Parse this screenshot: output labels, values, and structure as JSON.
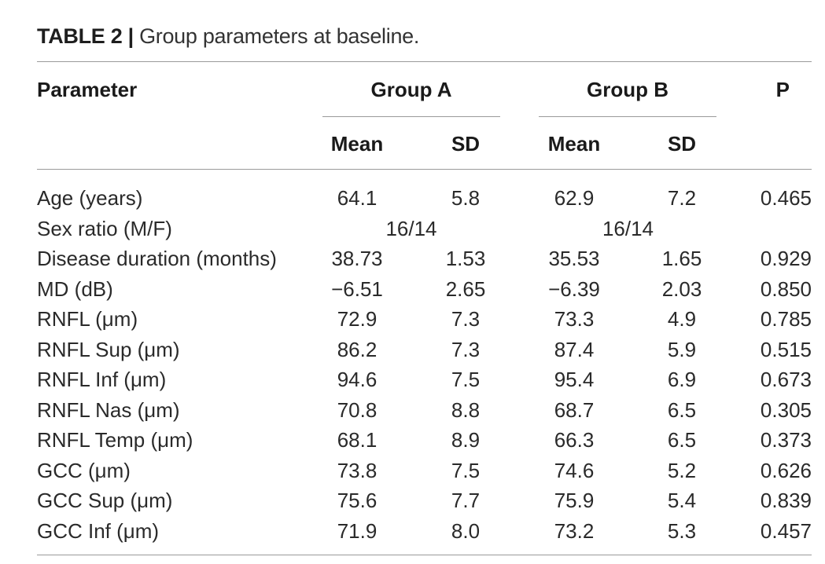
{
  "caption": {
    "label": "TABLE 2 |",
    "title": "Group parameters at baseline."
  },
  "header": {
    "parameter": "Parameter",
    "group_a": "Group A",
    "group_b": "Group B",
    "p": "P",
    "mean_a": "Mean",
    "sd_a": "SD",
    "mean_b": "Mean",
    "sd_b": "SD"
  },
  "rows": [
    {
      "parameter": "Age (years)",
      "a_mean": "64.1",
      "a_sd": "5.8",
      "b_mean": "62.9",
      "b_sd": "7.2",
      "p": "0.465"
    },
    {
      "parameter": "Sex ratio (M/F)",
      "a_ratio": "16/14",
      "b_ratio": "16/14",
      "p": ""
    },
    {
      "parameter": "Disease duration (months)",
      "a_mean": "38.73",
      "a_sd": "1.53",
      "b_mean": "35.53",
      "b_sd": "1.65",
      "p": "0.929"
    },
    {
      "parameter": "MD (dB)",
      "a_mean": "−6.51",
      "a_sd": "2.65",
      "b_mean": "−6.39",
      "b_sd": "2.03",
      "p": "0.850"
    },
    {
      "parameter": "RNFL (μm)",
      "a_mean": "72.9",
      "a_sd": "7.3",
      "b_mean": "73.3",
      "b_sd": "4.9",
      "p": "0.785"
    },
    {
      "parameter": "RNFL Sup (μm)",
      "a_mean": "86.2",
      "a_sd": "7.3",
      "b_mean": "87.4",
      "b_sd": "5.9",
      "p": "0.515"
    },
    {
      "parameter": "RNFL Inf (μm)",
      "a_mean": "94.6",
      "a_sd": "7.5",
      "b_mean": "95.4",
      "b_sd": "6.9",
      "p": "0.673"
    },
    {
      "parameter": "RNFL Nas (μm)",
      "a_mean": "70.8",
      "a_sd": "8.8",
      "b_mean": "68.7",
      "b_sd": "6.5",
      "p": "0.305"
    },
    {
      "parameter": "RNFL Temp (μm)",
      "a_mean": "68.1",
      "a_sd": "8.9",
      "b_mean": "66.3",
      "b_sd": "6.5",
      "p": "0.373"
    },
    {
      "parameter": "GCC (μm)",
      "a_mean": "73.8",
      "a_sd": "7.5",
      "b_mean": "74.6",
      "b_sd": "5.2",
      "p": "0.626"
    },
    {
      "parameter": "GCC Sup (μm)",
      "a_mean": "75.6",
      "a_sd": "7.7",
      "b_mean": "75.9",
      "b_sd": "5.4",
      "p": "0.839"
    },
    {
      "parameter": "GCC Inf (μm)",
      "a_mean": "71.9",
      "a_sd": "8.0",
      "b_mean": "73.2",
      "b_sd": "5.3",
      "p": "0.457"
    }
  ]
}
